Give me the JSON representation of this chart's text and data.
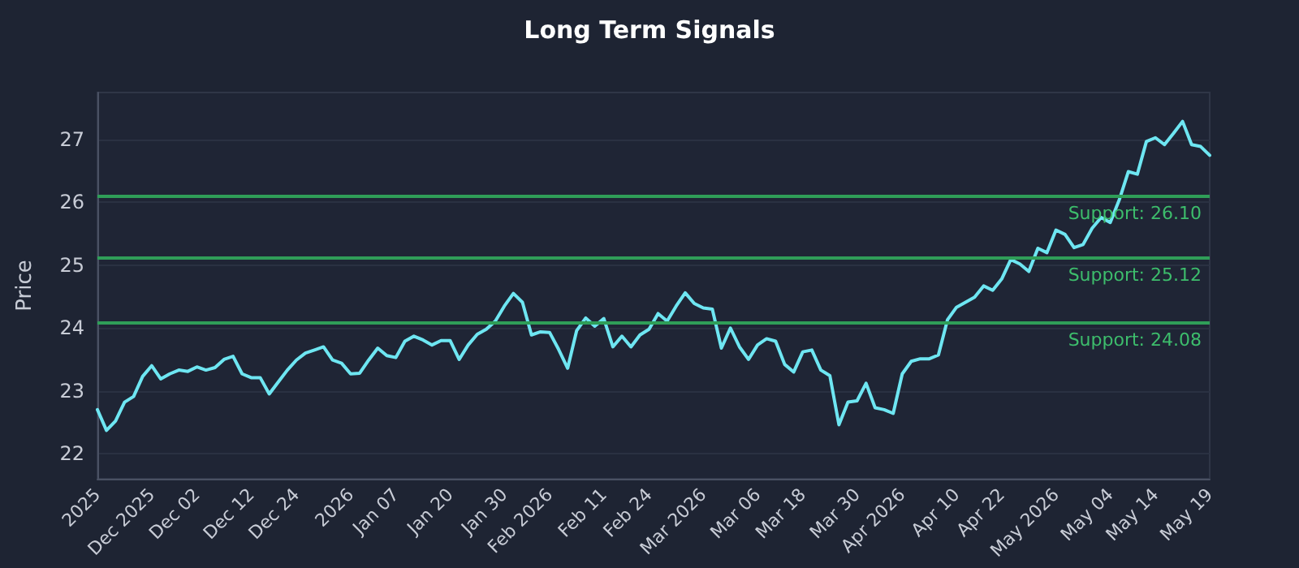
{
  "chart_data": {
    "type": "line",
    "title": "Long Term Signals",
    "ylabel": "Price",
    "categories": [
      "2025",
      null,
      null,
      null,
      null,
      null,
      "Dec 2025",
      null,
      null,
      null,
      null,
      "Dec 02",
      null,
      null,
      null,
      null,
      null,
      "Dec 12",
      null,
      null,
      null,
      null,
      "Dec 24",
      null,
      null,
      null,
      null,
      null,
      "2026",
      null,
      null,
      null,
      null,
      "Jan 07",
      null,
      null,
      null,
      null,
      null,
      "Jan 20",
      null,
      null,
      null,
      null,
      null,
      "Jan 30",
      null,
      null,
      null,
      null,
      "Feb 2026",
      null,
      null,
      null,
      null,
      null,
      "Feb 11",
      null,
      null,
      null,
      null,
      "Feb 24",
      null,
      null,
      null,
      null,
      null,
      "Mar 2026",
      null,
      null,
      null,
      null,
      null,
      "Mar 06",
      null,
      null,
      null,
      null,
      "Mar 18",
      null,
      null,
      null,
      null,
      null,
      "Mar 30",
      null,
      null,
      null,
      null,
      "Apr 2026",
      null,
      null,
      null,
      null,
      null,
      "Apr 10",
      null,
      null,
      null,
      null,
      "Apr 22",
      null,
      null,
      null,
      null,
      null,
      "May 2026",
      null,
      null,
      null,
      null,
      null,
      "May 04",
      null,
      null,
      null,
      null,
      "May 14",
      null,
      null,
      null,
      null,
      null,
      "May 19"
    ],
    "series": [
      {
        "color": "#6ee6f2",
        "values": [
          22.7,
          22.37,
          22.52,
          22.82,
          22.91,
          23.23,
          23.4,
          23.19,
          23.27,
          23.33,
          23.31,
          23.38,
          23.33,
          23.37,
          23.5,
          23.55,
          23.27,
          23.21,
          23.21,
          22.95,
          23.14,
          23.33,
          23.49,
          23.6,
          23.65,
          23.7,
          23.49,
          23.44,
          23.27,
          23.28,
          23.49,
          23.68,
          23.56,
          23.53,
          23.79,
          23.87,
          23.81,
          23.73,
          23.8,
          23.8,
          23.5,
          23.73,
          23.9,
          23.98,
          24.11,
          24.35,
          24.55,
          24.41,
          23.89,
          23.94,
          23.93,
          23.66,
          23.36,
          23.96,
          24.16,
          24.03,
          24.15,
          23.7,
          23.87,
          23.7,
          23.89,
          23.98,
          24.23,
          24.11,
          24.35,
          24.56,
          24.39,
          24.32,
          24.3,
          23.68,
          24.0,
          23.7,
          23.5,
          23.73,
          23.83,
          23.79,
          23.42,
          23.3,
          23.62,
          23.65,
          23.33,
          23.24,
          22.46,
          22.82,
          22.84,
          23.12,
          22.73,
          22.7,
          22.64,
          23.27,
          23.47,
          23.51,
          23.51,
          23.57,
          24.13,
          24.33,
          24.41,
          24.49,
          24.67,
          24.6,
          24.78,
          25.09,
          25.02,
          24.9,
          25.27,
          25.2,
          25.56,
          25.49,
          25.28,
          25.33,
          25.59,
          25.76,
          25.68,
          26.04,
          26.49,
          26.45,
          26.97,
          27.03,
          26.92,
          27.1,
          27.29,
          26.92,
          26.89,
          26.75
        ]
      }
    ],
    "ylim": [
      21.6,
      27.75
    ],
    "yticks": [
      22,
      23,
      24,
      25,
      26,
      27
    ],
    "grid": "y",
    "marker": "none",
    "line_style": "solid",
    "ref_lines": [
      {
        "axis": "y",
        "value": 26.1,
        "label": "Support: 26.10",
        "color": "#2f9e58"
      },
      {
        "axis": "y",
        "value": 25.12,
        "label": "Support: 25.12",
        "color": "#2f9e58"
      },
      {
        "axis": "y",
        "value": 24.08,
        "label": "Support: 24.08",
        "color": "#2f9e58"
      }
    ]
  }
}
